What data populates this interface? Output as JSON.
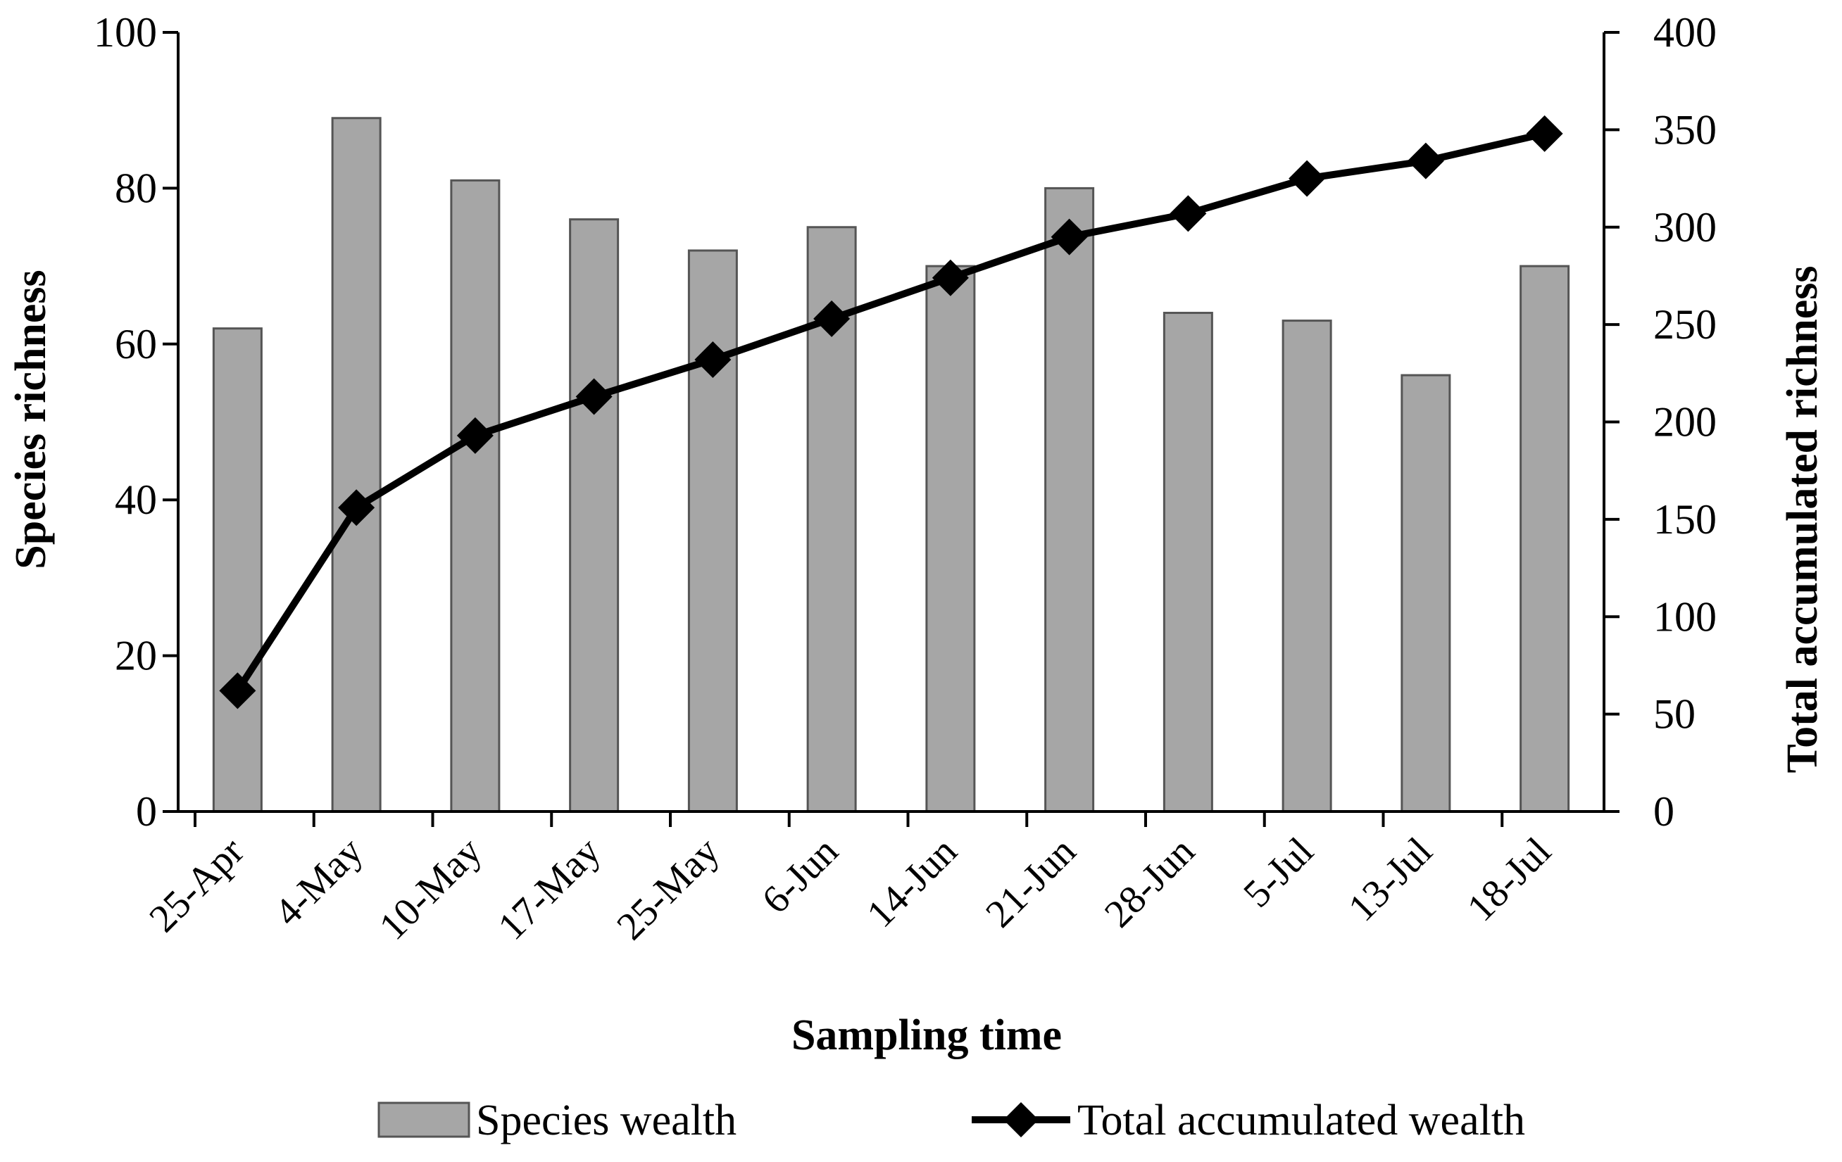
{
  "chart_data": {
    "type": "bar+line",
    "title": "",
    "xlabel": "Sampling time",
    "ylabel": "Species richness",
    "y2label": "Total accumulated richness",
    "categories": [
      "25-Apr",
      "4-May",
      "10-May",
      "17-May",
      "25-May",
      "6-Jun",
      "14-Jun",
      "21-Jun",
      "28-Jun",
      "5-Jul",
      "13-Jul",
      "18-Jul"
    ],
    "ylim": [
      0,
      100
    ],
    "yticks": [
      "0",
      "20",
      "40",
      "60",
      "80",
      "100"
    ],
    "y2lim": [
      0,
      400
    ],
    "y2ticks": [
      "0",
      "50",
      "100",
      "150",
      "200",
      "250",
      "300",
      "350",
      "400"
    ],
    "series": [
      {
        "name": "Species wealth",
        "type": "bar",
        "axis": "left",
        "color": "#a6a6a6",
        "values": [
          62,
          89,
          81,
          76,
          72,
          75,
          70,
          80,
          64,
          63,
          56,
          70
        ]
      },
      {
        "name": "Total accumulated wealth",
        "type": "line",
        "axis": "right",
        "color": "#000000",
        "marker": "diamond",
        "values": [
          62,
          156,
          193,
          213,
          232,
          253,
          274,
          295,
          307,
          325,
          334,
          348
        ]
      }
    ],
    "grid": false,
    "legend": "bottom"
  }
}
